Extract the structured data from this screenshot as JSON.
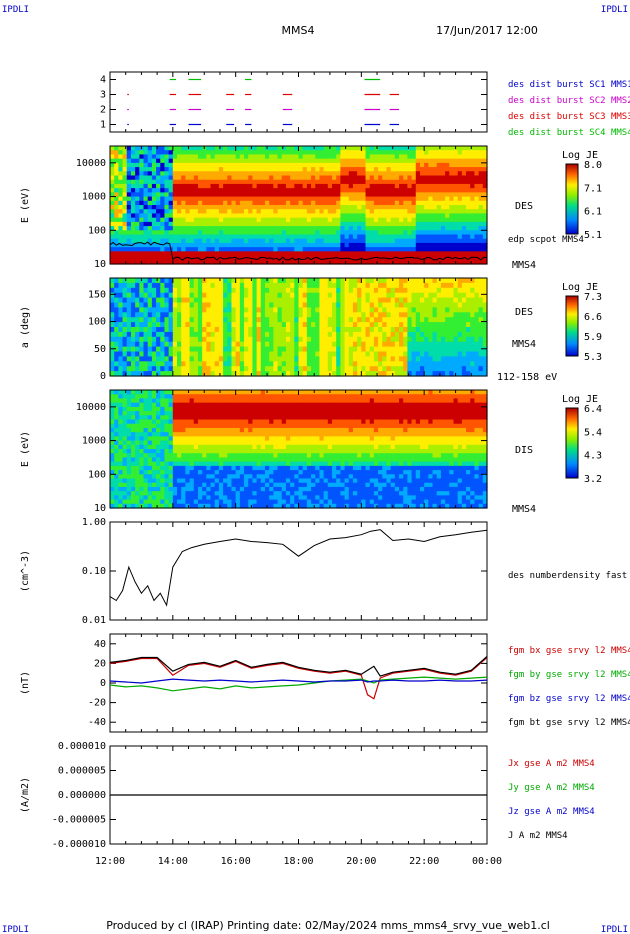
{
  "header": {
    "corner_left": "IPDLI",
    "corner_right": "IPDLI",
    "spacecraft": "MMS4",
    "datetime": "17/Jun/2017 12:00"
  },
  "footer": {
    "text": "Produced by cl (IRAP)   Printing date: 02/May/2024   mms_mms4_srvy_vue_web1.cl",
    "corner_left": "IPDLI",
    "corner_right": "IPDLI"
  },
  "x_axis": {
    "ticks": [
      "12:00",
      "14:00",
      "16:00",
      "18:00",
      "20:00",
      "22:00",
      "00:00"
    ]
  },
  "colors": {
    "mms1": "#0000cc",
    "mms2": "#cc00cc",
    "mms3": "#dd0000",
    "mms4": "#00bb00",
    "bx": "#cc0000",
    "by": "#00aa00",
    "bz": "#0000cc",
    "bt": "#000000"
  },
  "chart_data": [
    {
      "id": "burst",
      "type": "scatter",
      "y_ticks": [
        "4",
        "3",
        "2",
        "1"
      ],
      "ylim": [
        0.5,
        4.5
      ],
      "legend": [
        "des dist burst SC1 MMS1",
        "des dist burst SC2 MMS2",
        "des dist burst SC3 MMS3",
        "des dist burst SC4 MMS4"
      ],
      "segments_hours": [
        [
          0.55,
          0.6
        ],
        [
          1.9,
          2.1
        ],
        [
          2.5,
          2.9
        ],
        [
          3.7,
          3.95
        ],
        [
          4.3,
          4.5
        ],
        [
          5.5,
          5.8
        ],
        [
          8.1,
          8.6
        ],
        [
          8.9,
          9.2
        ]
      ]
    },
    {
      "id": "des_energy",
      "type": "heatmap",
      "ylabel": "E (eV)",
      "y_ticks": [
        "10000",
        "1000",
        "100",
        "10"
      ],
      "right_label": "DES",
      "right_label2": "edp scpot MMS4",
      "right_label3": "MMS4",
      "colorbar": {
        "title": "Log JE",
        "ticks": [
          "8.0",
          "7.1",
          "6.1",
          "5.1"
        ]
      }
    },
    {
      "id": "des_pitch",
      "type": "heatmap",
      "ylabel": "a (deg)",
      "y_ticks": [
        "150",
        "100",
        "50",
        "0"
      ],
      "right_label": "DES",
      "right_label2": "MMS4",
      "right_label3": "112-158 eV",
      "colorbar": {
        "title": "Log JE",
        "ticks": [
          "7.3",
          "6.6",
          "5.9",
          "5.3"
        ]
      }
    },
    {
      "id": "dis_energy",
      "type": "heatmap",
      "ylabel": "E (eV)",
      "y_ticks": [
        "10000",
        "1000",
        "100",
        "10"
      ],
      "right_label": "DIS",
      "right_label2": "MMS4",
      "colorbar": {
        "title": "Log JE",
        "ticks": [
          "6.4",
          "5.4",
          "4.3",
          "3.2"
        ]
      }
    },
    {
      "id": "density",
      "type": "line",
      "ylabel": "(cm^-3)",
      "y_ticks": [
        "1.00",
        "0.10",
        "0.01"
      ],
      "log": true,
      "ylim": [
        0.01,
        1.0
      ],
      "legend": [
        "des numberdensity fast M"
      ],
      "series": [
        {
          "x": [
            0,
            0.2,
            0.4,
            0.6,
            0.8,
            1.0,
            1.2,
            1.4,
            1.6,
            1.8,
            2.0,
            2.3,
            2.6,
            3.0,
            3.5,
            4.0,
            4.5,
            5.0,
            5.5,
            6.0,
            6.5,
            7.0,
            7.5,
            8.0,
            8.3,
            8.6,
            9.0,
            9.5,
            10.0,
            10.5,
            11.0,
            11.5,
            12.0
          ],
          "y": [
            0.03,
            0.025,
            0.04,
            0.12,
            0.06,
            0.035,
            0.05,
            0.025,
            0.035,
            0.02,
            0.12,
            0.25,
            0.3,
            0.35,
            0.4,
            0.45,
            0.4,
            0.38,
            0.35,
            0.2,
            0.33,
            0.45,
            0.48,
            0.55,
            0.65,
            0.7,
            0.42,
            0.45,
            0.4,
            0.5,
            0.55,
            0.62,
            0.68
          ]
        }
      ]
    },
    {
      "id": "bfield",
      "type": "line",
      "ylabel": "(nT)",
      "y_ticks": [
        "40",
        "20",
        "0",
        "-20",
        "-40"
      ],
      "ylim": [
        -50,
        50
      ],
      "legend": [
        "fgm bx gse srvy l2 MMS4",
        "fgm by gse srvy l2 MMS4",
        "fgm bz gse srvy l2 MMS4",
        "fgm bt gse srvy l2 MMS4"
      ],
      "x": [
        0,
        0.5,
        1.0,
        1.5,
        2.0,
        2.5,
        3.0,
        3.5,
        4.0,
        4.5,
        5.0,
        5.5,
        6.0,
        6.5,
        7.0,
        7.5,
        8.0,
        8.2,
        8.4,
        8.6,
        9.0,
        9.5,
        10.0,
        10.5,
        11.0,
        11.5,
        12.0
      ],
      "series": [
        {
          "name": "bx",
          "values": [
            20,
            22,
            25,
            25,
            8,
            18,
            20,
            16,
            22,
            15,
            18,
            20,
            15,
            12,
            10,
            12,
            8,
            -12,
            -16,
            5,
            10,
            12,
            14,
            10,
            8,
            12,
            26
          ]
        },
        {
          "name": "by",
          "values": [
            -2,
            -4,
            -3,
            -5,
            -8,
            -6,
            -4,
            -6,
            -3,
            -5,
            -4,
            -3,
            -2,
            0,
            2,
            3,
            4,
            2,
            0,
            3,
            4,
            5,
            6,
            5,
            4,
            5,
            6
          ]
        },
        {
          "name": "bz",
          "values": [
            2,
            1,
            0,
            2,
            4,
            3,
            2,
            3,
            2,
            1,
            2,
            3,
            2,
            1,
            2,
            2,
            3,
            1,
            2,
            2,
            3,
            2,
            2,
            3,
            2,
            2,
            3
          ]
        },
        {
          "name": "bt",
          "values": [
            21,
            23,
            26,
            26,
            12,
            19,
            21,
            17,
            23,
            16,
            19,
            21,
            16,
            13,
            11,
            13,
            9,
            13,
            17,
            7,
            11,
            13,
            15,
            11,
            9,
            13,
            27
          ]
        }
      ]
    },
    {
      "id": "current",
      "type": "line",
      "ylabel": "(A/m2)",
      "y_ticks": [
        "0.000010",
        "0.000005",
        "0.000000",
        "-0.000005",
        "-0.000010"
      ],
      "ylim": [
        -1e-05,
        1e-05
      ],
      "legend": [
        "Jx gse A m2 MMS4",
        "Jy gse A m2 MMS4",
        "Jz gse A m2 MMS4",
        "J A m2 MMS4"
      ],
      "series": [
        {
          "name": "J",
          "x": [
            0,
            12
          ],
          "values": [
            0,
            0
          ]
        }
      ]
    }
  ]
}
